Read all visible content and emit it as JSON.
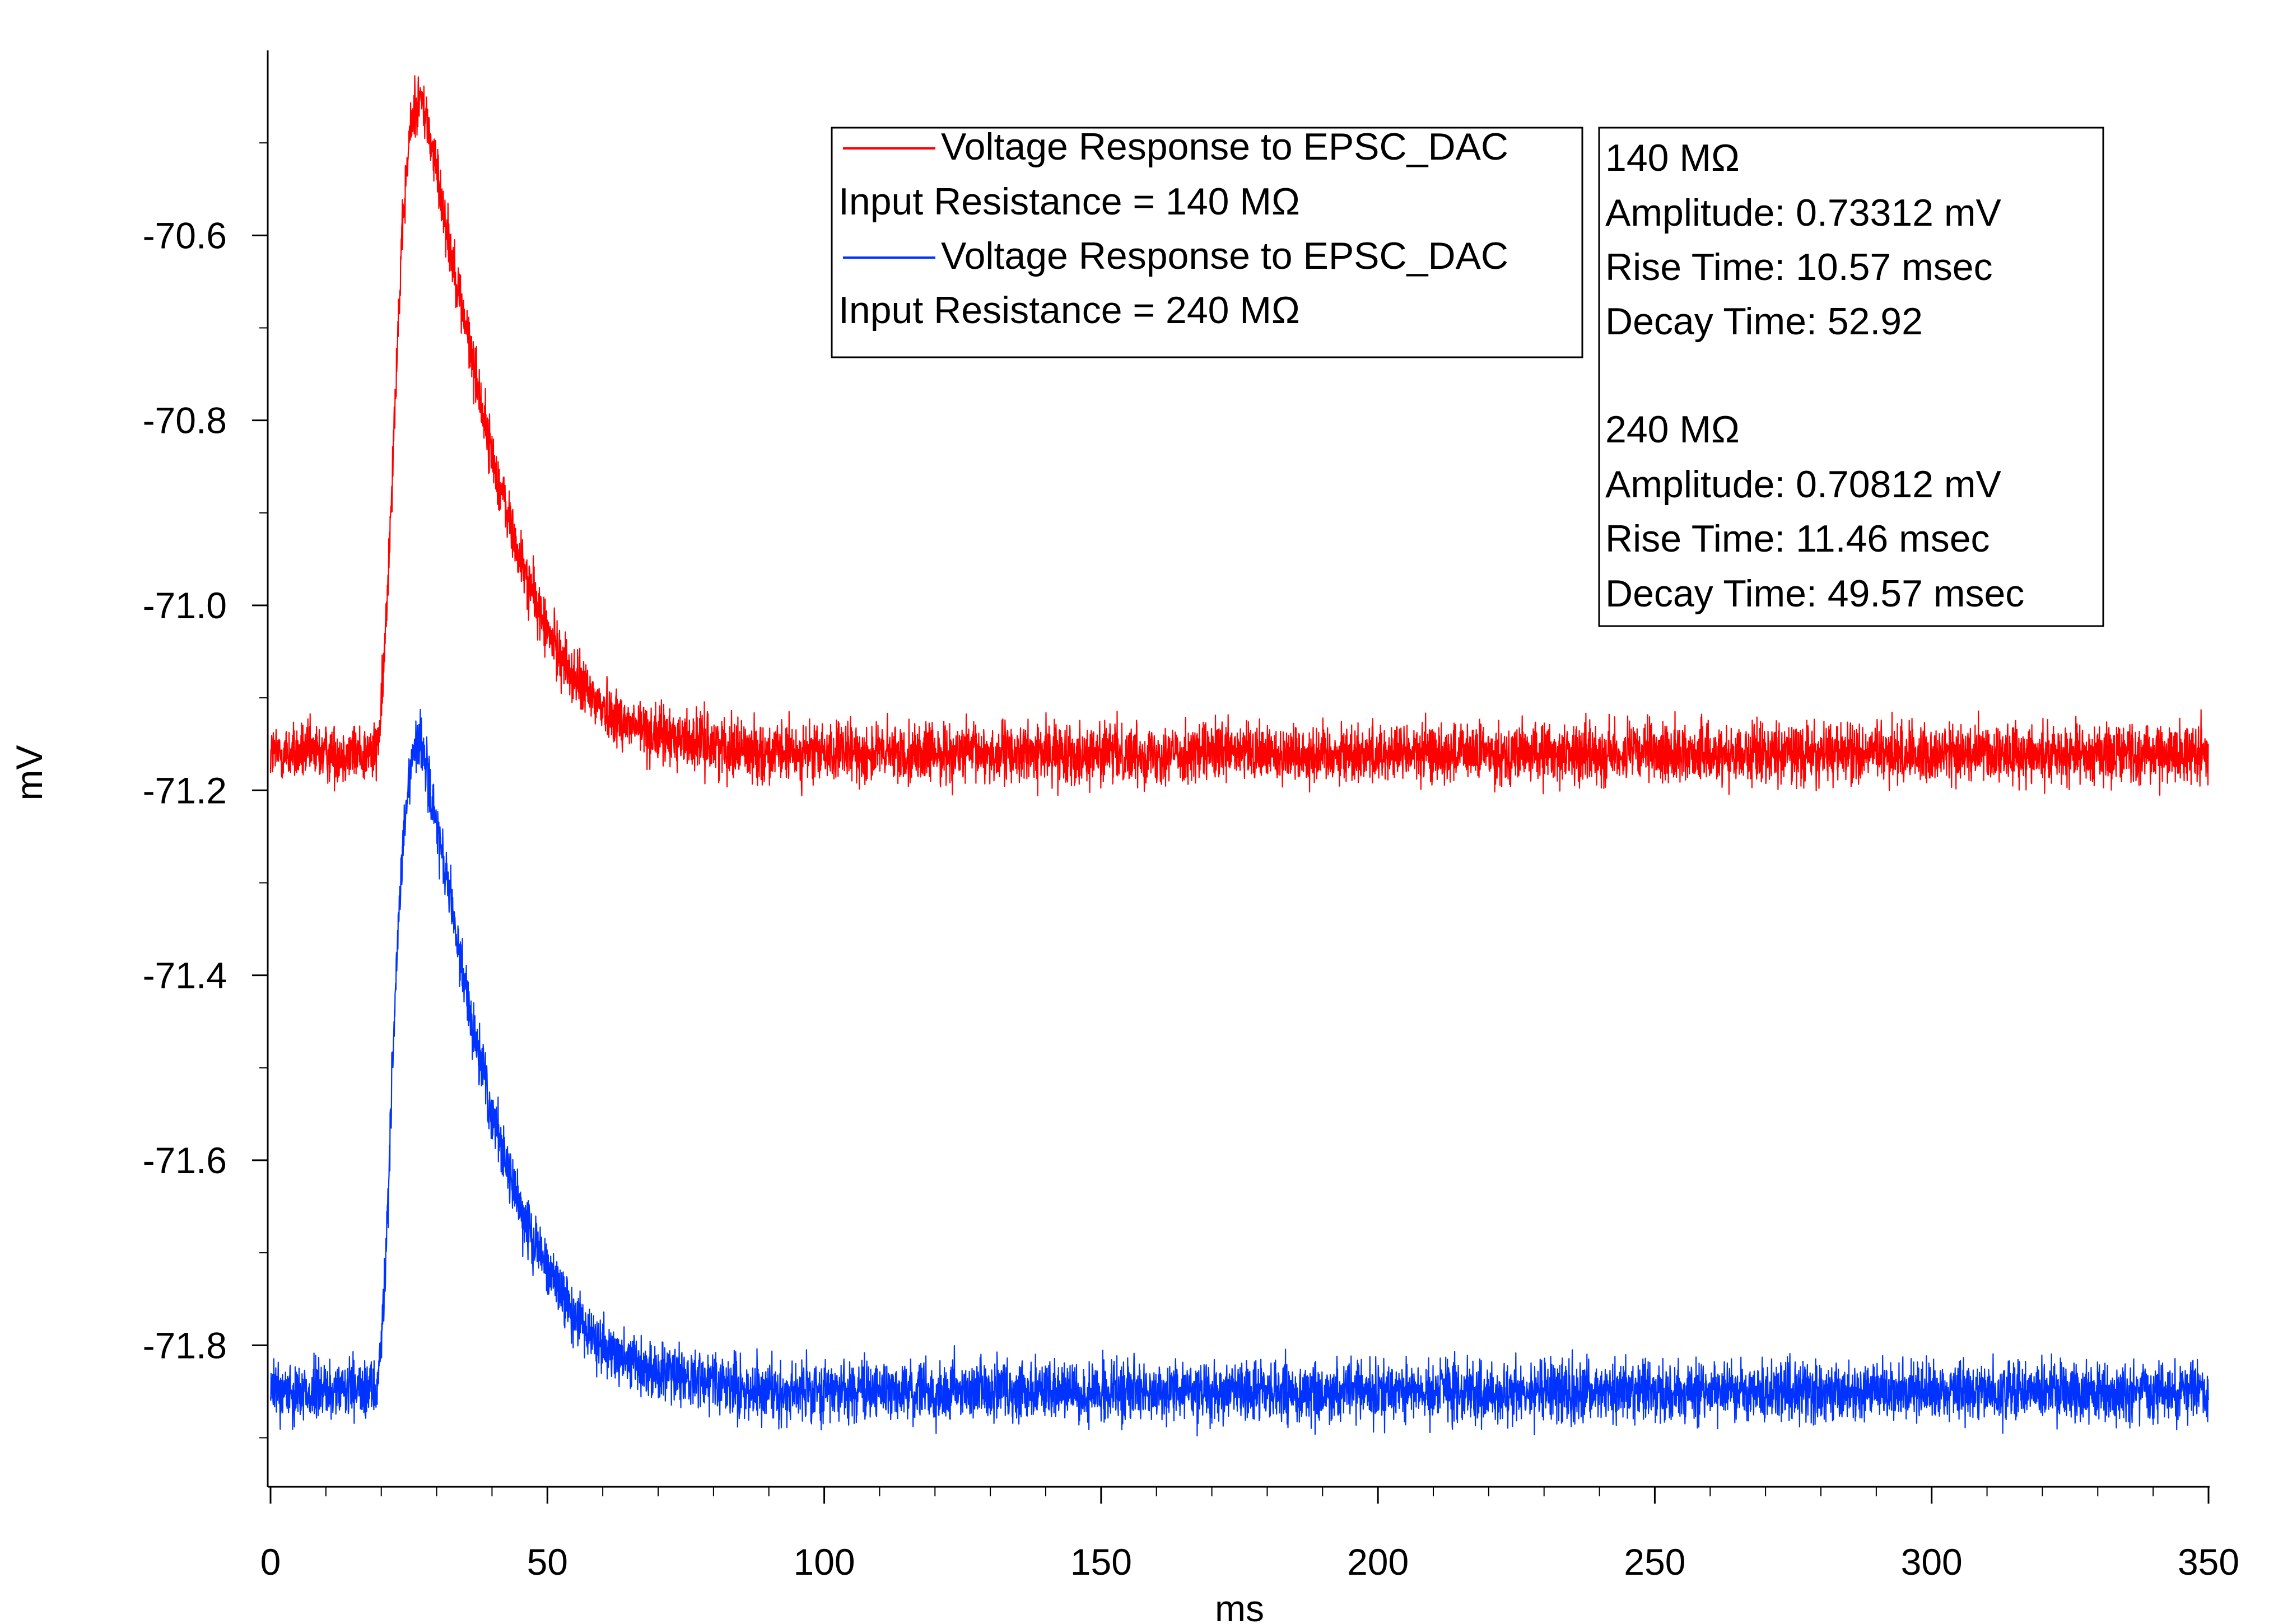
{
  "chart_data": {
    "type": "line",
    "xlabel": "ms",
    "ylabel": "mV",
    "xlim": [
      0,
      350
    ],
    "ylim": [
      -71.95,
      -70.4
    ],
    "x_ticks": [
      0,
      50,
      100,
      150,
      200,
      250,
      300,
      350
    ],
    "x_tick_labels": [
      "0",
      "50",
      "100",
      "150",
      "200",
      "250",
      "300",
      "350"
    ],
    "y_ticks": [
      -70.6,
      -70.8,
      -71.0,
      -71.2,
      -71.4,
      -71.6,
      -71.8
    ],
    "y_tick_labels": [
      "-70.6",
      "-70.8",
      "-71.0",
      "-71.2",
      "-71.4",
      "-71.6",
      "-71.8"
    ],
    "grid": false,
    "legend_position": "top-center",
    "series": [
      {
        "name": "Voltage Response to EPSC_DAC",
        "legend_sublabel": "Input Resistance = 140 MΩ",
        "color": "#ff0000",
        "baseline": -71.16,
        "noise_amplitude": 0.04,
        "onset_ms": 20,
        "peak_ms": 26.5,
        "peak_mV": -70.43,
        "decay_tau_ms": 12,
        "x": [
          0,
          19,
          20,
          21,
          22,
          23,
          24,
          25,
          26,
          27,
          28,
          30,
          33,
          36,
          40,
          45,
          50,
          55,
          60,
          65,
          70,
          80,
          90,
          100,
          120,
          150,
          200,
          250,
          300,
          350
        ],
        "y": [
          -71.16,
          -71.16,
          -71.12,
          -71.0,
          -70.85,
          -70.7,
          -70.58,
          -70.5,
          -70.46,
          -70.45,
          -70.47,
          -70.53,
          -70.63,
          -70.72,
          -70.84,
          -70.95,
          -71.03,
          -71.08,
          -71.11,
          -71.13,
          -71.14,
          -71.15,
          -71.16,
          -71.16,
          -71.16,
          -71.16,
          -71.16,
          -71.16,
          -71.16,
          -71.16
        ]
      },
      {
        "name": "Voltage Response to EPSC_DAC",
        "legend_sublabel": "Input Resistance = 240 MΩ",
        "color": "#0033ff",
        "baseline": -71.85,
        "noise_amplitude": 0.04,
        "onset_ms": 20,
        "peak_ms": 26.5,
        "peak_mV": -71.15,
        "decay_tau_ms": 11.5,
        "x": [
          0,
          19,
          20,
          21,
          22,
          23,
          24,
          25,
          26,
          27,
          28,
          30,
          33,
          36,
          40,
          45,
          50,
          55,
          60,
          65,
          70,
          80,
          90,
          100,
          120,
          150,
          200,
          250,
          300,
          350
        ],
        "y": [
          -71.85,
          -71.85,
          -71.8,
          -71.68,
          -71.5,
          -71.36,
          -71.25,
          -71.19,
          -71.16,
          -71.15,
          -71.17,
          -71.24,
          -71.34,
          -71.44,
          -71.55,
          -71.65,
          -71.72,
          -71.77,
          -71.8,
          -71.82,
          -71.83,
          -71.84,
          -71.85,
          -71.85,
          -71.85,
          -71.85,
          -71.85,
          -71.85,
          -71.85,
          -71.85
        ]
      }
    ],
    "legend": [
      {
        "label": "Voltage Response to EPSC_DAC",
        "color": "#ff0000",
        "sublabel": "Input Resistance = 140 MΩ"
      },
      {
        "label": "Voltage Response to EPSC_DAC",
        "color": "#0033ff",
        "sublabel": "Input Resistance = 240 MΩ"
      }
    ],
    "annotation_lines": [
      "140 MΩ",
      "Amplitude: 0.73312 mV",
      "Rise Time: 10.57 msec",
      "Decay Time: 52.92",
      "",
      "240 MΩ",
      "Amplitude: 0.70812 mV",
      "Rise Time: 11.46 msec",
      "Decay Time: 49.57 msec"
    ]
  }
}
